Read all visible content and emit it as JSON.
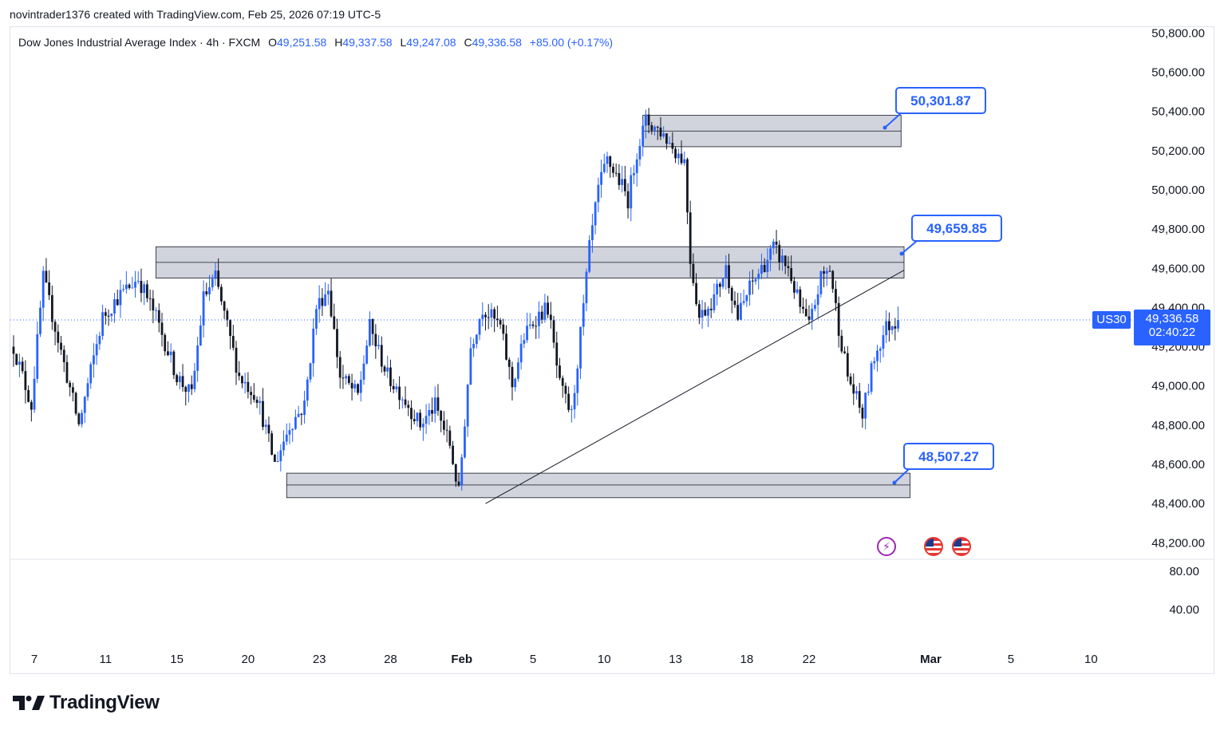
{
  "caption": "novintrader1376 created with TradingView.com, Feb 25, 2026 07:19 UTC-5",
  "legend": {
    "symbol": "Dow Jones Industrial Average Index · 4h · FXCM",
    "o_label": "O",
    "o": "49,251.58",
    "h_label": "H",
    "h": "49,337.58",
    "l_label": "L",
    "l": "49,247.08",
    "c_label": "C",
    "c": "49,336.58",
    "change": "+85.00 (+0.17%)"
  },
  "price_tag": {
    "symbol": "US30",
    "price": "49,336.58",
    "countdown": "02:40:22"
  },
  "brand": "TradingView",
  "colors": {
    "up": "#2962ff",
    "down": "#131722",
    "accent": "#2962ff",
    "zone": "#d1d4dc"
  },
  "chart_data": {
    "type": "candlestick",
    "title": "Dow Jones Industrial Average Index · 4h · FXCM",
    "y_ticks": [
      "50,800.00",
      "50,600.00",
      "50,400.00",
      "50,200.00",
      "50,000.00",
      "49,800.00",
      "49,600.00",
      "49,400.00",
      "49,200.00",
      "49,000.00",
      "48,800.00",
      "48,600.00",
      "48,400.00",
      "48,200.00"
    ],
    "y_tick_values": [
      50800,
      50600,
      50400,
      50200,
      50000,
      49800,
      49600,
      49400,
      49200,
      49000,
      48800,
      48600,
      48400,
      48200
    ],
    "ylim": [
      48120,
      50830
    ],
    "lower_pane_ticks": [
      "80.00",
      "40.00"
    ],
    "x_ticks": [
      {
        "label": "7",
        "idx": 7
      },
      {
        "label": "11",
        "idx": 31
      },
      {
        "label": "15",
        "idx": 55
      },
      {
        "label": "20",
        "idx": 79
      },
      {
        "label": "23",
        "idx": 103
      },
      {
        "label": "28",
        "idx": 127
      },
      {
        "label": "Feb",
        "idx": 151
      },
      {
        "label": "5",
        "idx": 175
      },
      {
        "label": "10",
        "idx": 199
      },
      {
        "label": "13",
        "idx": 223
      },
      {
        "label": "18",
        "idx": 247
      },
      {
        "label": "22",
        "idx": 268
      },
      {
        "label": "Mar",
        "idx": 309
      },
      {
        "label": "5",
        "idx": 336
      },
      {
        "label": "10",
        "idx": 363
      }
    ],
    "path": [
      [
        0,
        49200
      ],
      [
        6,
        48900
      ],
      [
        10,
        49550
      ],
      [
        18,
        49050
      ],
      [
        22,
        48800
      ],
      [
        30,
        49350
      ],
      [
        35,
        49450
      ],
      [
        42,
        49550
      ],
      [
        48,
        49350
      ],
      [
        55,
        49050
      ],
      [
        60,
        48950
      ],
      [
        64,
        49450
      ],
      [
        68,
        49550
      ],
      [
        76,
        49050
      ],
      [
        82,
        48950
      ],
      [
        88,
        48600
      ],
      [
        93,
        48800
      ],
      [
        98,
        48900
      ],
      [
        102,
        49400
      ],
      [
        106,
        49500
      ],
      [
        110,
        49050
      ],
      [
        116,
        48950
      ],
      [
        120,
        49300
      ],
      [
        126,
        49050
      ],
      [
        131,
        48950
      ],
      [
        137,
        48800
      ],
      [
        142,
        48900
      ],
      [
        147,
        48700
      ],
      [
        150,
        48450
      ],
      [
        154,
        49200
      ],
      [
        158,
        49400
      ],
      [
        164,
        49300
      ],
      [
        168,
        49000
      ],
      [
        172,
        49250
      ],
      [
        176,
        49350
      ],
      [
        180,
        49400
      ],
      [
        184,
        49000
      ],
      [
        188,
        48850
      ],
      [
        192,
        49400
      ],
      [
        194,
        49700
      ],
      [
        197,
        50000
      ],
      [
        200,
        50150
      ],
      [
        204,
        50050
      ],
      [
        207,
        49950
      ],
      [
        210,
        50200
      ],
      [
        213,
        50350
      ],
      [
        218,
        50300
      ],
      [
        223,
        50200
      ],
      [
        226,
        50150
      ],
      [
        228,
        49650
      ],
      [
        231,
        49350
      ],
      [
        236,
        49450
      ],
      [
        240,
        49600
      ],
      [
        244,
        49350
      ],
      [
        248,
        49500
      ],
      [
        252,
        49600
      ],
      [
        256,
        49700
      ],
      [
        261,
        49600
      ],
      [
        265,
        49400
      ],
      [
        268,
        49300
      ],
      [
        272,
        49550
      ],
      [
        275,
        49600
      ],
      [
        278,
        49300
      ],
      [
        281,
        49050
      ],
      [
        286,
        48850
      ],
      [
        290,
        49150
      ],
      [
        294,
        49300
      ],
      [
        298,
        49337
      ]
    ],
    "zones": [
      {
        "low": 50220,
        "high": 50380,
        "mid": 50300,
        "from_idx": 212,
        "to_idx": 299
      },
      {
        "low": 49550,
        "high": 49710,
        "mid": 49630,
        "from_idx": 48,
        "to_idx": 300
      },
      {
        "low": 48430,
        "high": 48555,
        "mid": 48495,
        "from_idx": 92,
        "to_idx": 302
      }
    ],
    "trendline": {
      "from_idx": 159,
      "from_price": 48400,
      "to_idx": 300,
      "to_price": 49590
    },
    "labels": [
      {
        "text": "50,301.87",
        "price": 50301.87
      },
      {
        "text": "49,659.85",
        "price": 49659.85
      },
      {
        "text": "48,507.27",
        "price": 48507.27
      }
    ],
    "last_price": 49336.58
  }
}
